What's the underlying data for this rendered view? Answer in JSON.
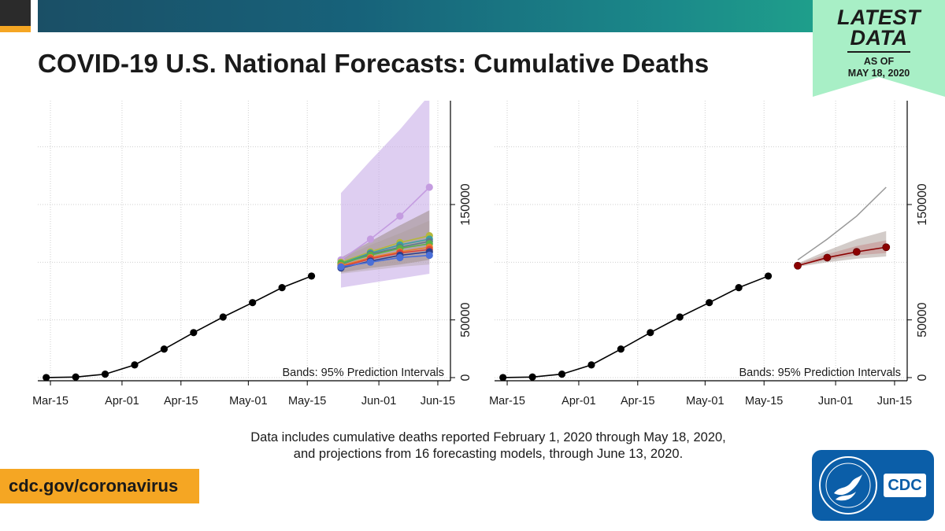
{
  "header": {
    "title": "COVID-19 U.S. National Forecasts: Cumulative Deaths",
    "badge": {
      "line1": "LATEST",
      "line2": "DATA",
      "line3": "AS OF",
      "line4": "MAY 18, 2020"
    }
  },
  "caption": {
    "line1": "Data includes cumulative deaths reported February 1, 2020 through May 18, 2020,",
    "line2": "and projections from 16 forecasting models, through June 13, 2020."
  },
  "footer": {
    "url": "cdc.gov/coronavirus",
    "logo_text": "CDC"
  },
  "colors": {
    "observed": "#000000",
    "ensemble": "#8b0000",
    "band_gray": "#a89a94",
    "band_purple": "#c8aee8",
    "grid": "#cfcfcf"
  },
  "chart_data": [
    {
      "type": "line",
      "name": "individual-models",
      "xlabel": "",
      "ylabel": "",
      "x_ticks": [
        "Mar-15",
        "Apr-01",
        "Apr-15",
        "May-01",
        "May-15",
        "Jun-01",
        "Jun-15"
      ],
      "x_tick_days": [
        0,
        17,
        31,
        47,
        61,
        78,
        92
      ],
      "y_ticks": [
        0,
        50000,
        150000
      ],
      "y_tick_labels": [
        "0",
        "50000",
        "150000"
      ],
      "xlim": [
        -3,
        95
      ],
      "ylim": [
        0,
        240000
      ],
      "annotation": "Bands: 95% Prediction Intervals",
      "observed": {
        "days": [
          -1,
          6,
          13,
          20,
          27,
          34,
          41,
          48,
          55,
          62
        ],
        "values": [
          50,
          500,
          3000,
          11000,
          24700,
          39000,
          52500,
          65000,
          78000,
          88000
        ]
      },
      "forecast_days": [
        69,
        76,
        83,
        90
      ],
      "bands": [
        {
          "name": "model-wide",
          "color": "#c8aee8",
          "opacity": 0.6,
          "lower": [
            78000,
            82000,
            86000,
            90000
          ],
          "upper": [
            160000,
            188000,
            215000,
            245000
          ]
        },
        {
          "name": "model-ensemble",
          "color": "#8f7f72",
          "opacity": 0.45,
          "lower": [
            91000,
            95000,
            98000,
            102000
          ],
          "upper": [
            104000,
            118000,
            132000,
            145000
          ]
        },
        {
          "name": "model-mid",
          "color": "#a89a94",
          "opacity": 0.35,
          "lower": [
            90000,
            93000,
            96000,
            98000
          ],
          "upper": [
            103000,
            115000,
            125000,
            136000
          ]
        }
      ],
      "series": [
        {
          "name": "purple",
          "color": "#c49ce0",
          "values": [
            102000,
            120000,
            140000,
            165000
          ]
        },
        {
          "name": "olive",
          "color": "#b5b83a",
          "values": [
            100000,
            109000,
            117000,
            123000
          ]
        },
        {
          "name": "teal",
          "color": "#3a9ea5",
          "values": [
            99000,
            108000,
            115000,
            120000
          ]
        },
        {
          "name": "slate",
          "color": "#5d7a8a",
          "values": [
            98000,
            107000,
            113000,
            118000
          ]
        },
        {
          "name": "green",
          "color": "#58b04a",
          "values": [
            99000,
            106000,
            112000,
            116000
          ]
        },
        {
          "name": "orange",
          "color": "#e87e2a",
          "values": [
            97000,
            104000,
            109000,
            113000
          ]
        },
        {
          "name": "red",
          "color": "#d9453a",
          "values": [
            96000,
            103000,
            108000,
            111000
          ]
        },
        {
          "name": "navy",
          "color": "#2d3f8c",
          "values": [
            95000,
            101000,
            106000,
            109000
          ]
        },
        {
          "name": "blue",
          "color": "#4a6fd8",
          "values": [
            96000,
            100000,
            104000,
            106000
          ]
        }
      ]
    },
    {
      "type": "line",
      "name": "ensemble",
      "xlabel": "",
      "ylabel": "",
      "x_ticks": [
        "Mar-15",
        "Apr-01",
        "Apr-15",
        "May-01",
        "May-15",
        "Jun-01",
        "Jun-15"
      ],
      "x_tick_days": [
        0,
        17,
        31,
        47,
        61,
        78,
        92
      ],
      "y_ticks": [
        0,
        50000,
        150000
      ],
      "y_tick_labels": [
        "0",
        "50000",
        "150000"
      ],
      "xlim": [
        -3,
        95
      ],
      "ylim": [
        0,
        240000
      ],
      "annotation": "Bands: 95% Prediction Intervals",
      "observed": {
        "days": [
          -1,
          6,
          13,
          20,
          27,
          34,
          41,
          48,
          55,
          62
        ],
        "values": [
          50,
          500,
          3000,
          11000,
          24700,
          39000,
          52500,
          65000,
          78000,
          88000
        ]
      },
      "forecast_days": [
        69,
        76,
        83,
        90
      ],
      "bands": [
        {
          "name": "ensemble-wide",
          "color": "#a89a94",
          "opacity": 0.5,
          "lower": [
            96000,
            100000,
            103000,
            105000
          ],
          "upper": [
            99000,
            110000,
            120000,
            127000
          ]
        },
        {
          "name": "ensemble-inner",
          "color": "#c08080",
          "opacity": 0.45,
          "lower": [
            97000,
            102000,
            106000,
            108000
          ],
          "upper": [
            98500,
            107000,
            114000,
            119000
          ]
        }
      ],
      "upper_line": {
        "color": "#999999",
        "values": [
          102000,
          120000,
          140000,
          165000
        ]
      },
      "series": [
        {
          "name": "ensemble",
          "color": "#8b0000",
          "values": [
            97000,
            104000,
            109000,
            113000
          ]
        }
      ]
    }
  ]
}
